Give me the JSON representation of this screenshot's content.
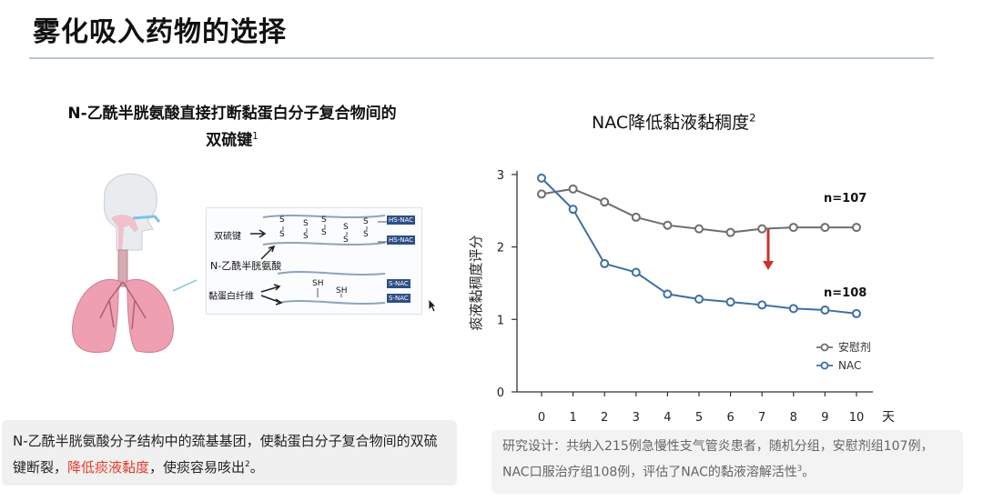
{
  "slide": {
    "title": "雾化吸入药物的选择",
    "left_heading": {
      "line1": "N-乙酰半胱氨酸直接打断黏蛋白分子复合物间的",
      "line2": "双硫键",
      "ref": "1"
    },
    "diagram": {
      "labels": {
        "disulfide": "双硫键",
        "nac": "N-乙酰半胱氨酸",
        "mucin": "黏蛋白纤维"
      },
      "tags": [
        "HS-NAC",
        "HS-NAC",
        "S-NAC",
        "S-NAC"
      ],
      "s_atom": "S",
      "sh_group": "SH"
    },
    "caption": {
      "text_before": "N-乙酰半胱氨酸分子结构中的巯基基团，使黏蛋白分子复合物间的双硫键断裂，",
      "highlight": "降低痰液黏度",
      "text_after": "，使痰容易咳出",
      "ref": "2",
      "end": "。"
    },
    "study": {
      "text": "研究设计：共纳入215例急慢性支气管炎患者，随机分组，安慰剂组107例，NAC口服治疗组108例，评估了NAC的黏液溶解活性",
      "ref": "3",
      "end": "。"
    },
    "colors": {
      "placebo": "#6e6e6e",
      "nac": "#3e6fa6",
      "arrow": "#c8342b",
      "tag": "#2e4f86"
    }
  },
  "chart_data": {
    "type": "line",
    "title": "NAC降低黏液黏稠度",
    "title_ref": "2",
    "ylabel": "痰液黏稠度评分",
    "xlabel": "天",
    "ylim": [
      0,
      3
    ],
    "yticks": [
      0,
      1,
      2,
      3
    ],
    "x": [
      0,
      1,
      2,
      3,
      4,
      5,
      6,
      7,
      8,
      9,
      10
    ],
    "series": [
      {
        "name": "安慰剂",
        "annotation": "n=107",
        "values": [
          2.73,
          2.8,
          2.62,
          2.41,
          2.3,
          2.25,
          2.2,
          2.25,
          2.27,
          2.27,
          2.27
        ]
      },
      {
        "name": "NAC",
        "annotation": "n=108",
        "values": [
          2.95,
          2.52,
          1.77,
          1.65,
          1.35,
          1.28,
          1.24,
          1.2,
          1.15,
          1.13,
          1.08
        ]
      }
    ],
    "legend": "bottom-right"
  }
}
